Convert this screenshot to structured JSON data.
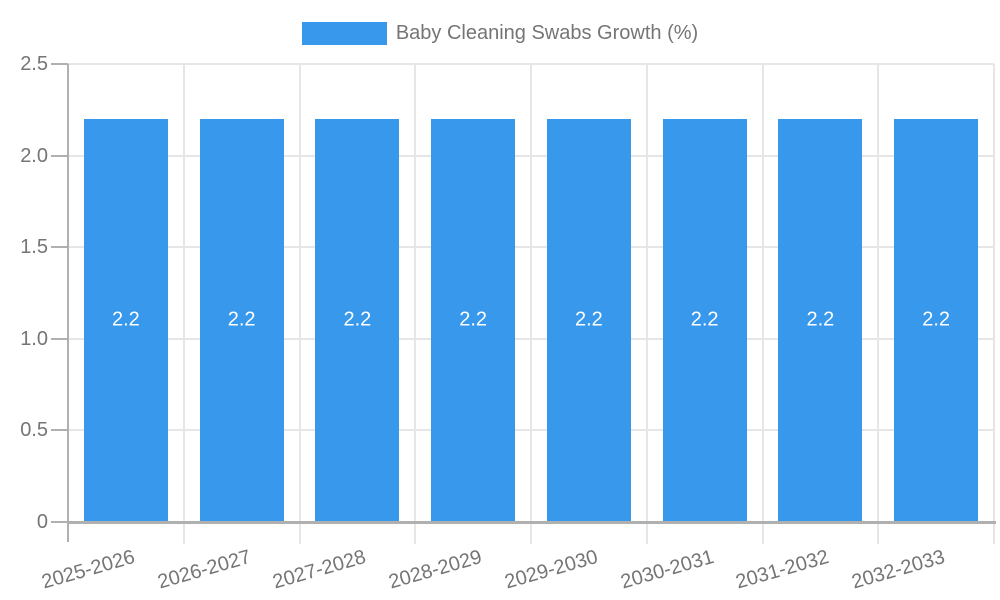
{
  "chart_data": {
    "type": "bar",
    "title": "Baby Cleaning Swabs Growth (%)",
    "categories": [
      "2025-2026",
      "2026-2027",
      "2027-2028",
      "2028-2029",
      "2029-2030",
      "2030-2031",
      "2031-2032",
      "2032-2033"
    ],
    "values": [
      2.2,
      2.2,
      2.2,
      2.2,
      2.2,
      2.2,
      2.2,
      2.2
    ],
    "bar_value_labels": [
      "2.2",
      "2.2",
      "2.2",
      "2.2",
      "2.2",
      "2.2",
      "2.2",
      "2.2"
    ],
    "xlabel": "",
    "ylabel": "",
    "ylim": [
      0,
      2.5
    ],
    "ytick_labels": [
      "2.5",
      "2.0",
      "1.5",
      "1.0",
      "0.5",
      "0"
    ],
    "grid": true,
    "legend": {
      "position": "top-center",
      "label": "Baby Cleaning Swabs Growth (%)"
    }
  },
  "colors": {
    "bar": "#3898ec",
    "bar_label": "#ffffff",
    "axis_text": "#757575",
    "gridline": "#e6e6e6",
    "axis_line": "#b0b0b0",
    "background": "#ffffff"
  }
}
